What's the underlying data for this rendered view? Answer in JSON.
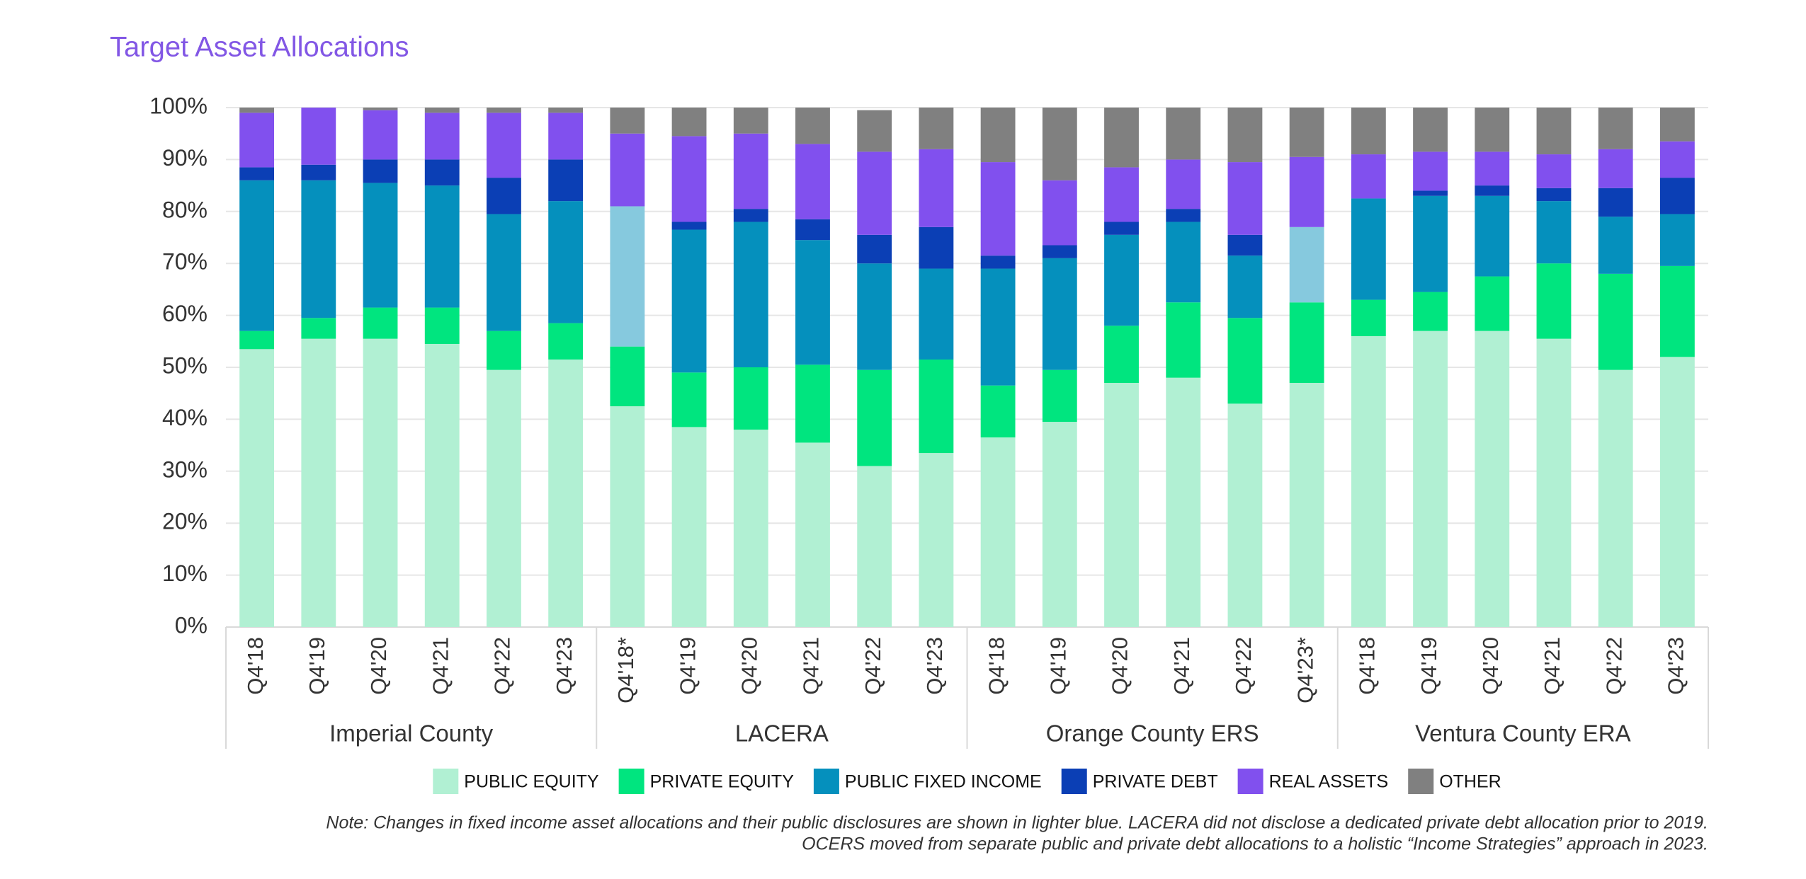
{
  "chart_data": {
    "type": "stacked-bar",
    "title": "Target Asset Allocations",
    "groups": [
      {
        "name": "Imperial County",
        "categories": [
          "Q4'18",
          "Q4'19",
          "Q4'20",
          "Q4'21",
          "Q4'22",
          "Q4'23"
        ]
      },
      {
        "name": "LACERA",
        "categories": [
          "Q4'18*",
          "Q4'19",
          "Q4'20",
          "Q4'21",
          "Q4'22",
          "Q4'23"
        ]
      },
      {
        "name": "Orange County ERS",
        "categories": [
          "Q4'18",
          "Q4'19",
          "Q4'20",
          "Q4'21",
          "Q4'22",
          "Q4'23*"
        ]
      },
      {
        "name": "Ventura County ERA",
        "categories": [
          "Q4'18",
          "Q4'19",
          "Q4'20",
          "Q4'21",
          "Q4'22",
          "Q4'23"
        ]
      }
    ],
    "series": [
      {
        "name": "PUBLIC EQUITY",
        "color": "#b1f0d3",
        "values": [
          53.5,
          55.5,
          55.5,
          54.5,
          49.5,
          51.5,
          42.5,
          38.5,
          38,
          35.5,
          31,
          33.5,
          36.5,
          39.5,
          47,
          48,
          43,
          47,
          56,
          57,
          57,
          55.5,
          49.5,
          52
        ]
      },
      {
        "name": "PRIVATE EQUITY",
        "color": "#00e57f",
        "values": [
          3.5,
          4,
          6,
          7,
          7.5,
          7,
          11.5,
          10.5,
          12,
          15,
          18.5,
          18,
          10,
          10,
          11,
          14.5,
          16.5,
          15.5,
          7,
          7.5,
          10.5,
          14.5,
          18.5,
          17.5
        ]
      },
      {
        "name": "PUBLIC FIXED INCOME",
        "color": "#0590bd",
        "colors": [
          "#0590bd",
          "#0590bd",
          "#0590bd",
          "#0590bd",
          "#0590bd",
          "#0590bd",
          "#86c9de",
          "#0590bd",
          "#0590bd",
          "#0590bd",
          "#0590bd",
          "#0590bd",
          "#0590bd",
          "#0590bd",
          "#0590bd",
          "#0590bd",
          "#0590bd",
          "#86c9de",
          "#0590bd",
          "#0590bd",
          "#0590bd",
          "#0590bd",
          "#0590bd",
          "#0590bd"
        ],
        "values": [
          29,
          26.5,
          24,
          23.5,
          22.5,
          23.5,
          27,
          27.5,
          28,
          24,
          20.5,
          17.5,
          22.5,
          21.5,
          17.5,
          15.5,
          12,
          14.5,
          19.5,
          18.5,
          15.5,
          12,
          11,
          10
        ]
      },
      {
        "name": "PRIVATE DEBT",
        "color": "#0b3fb5",
        "values": [
          2.5,
          3,
          4.5,
          5,
          7,
          8,
          0,
          1.5,
          2.5,
          4,
          5.5,
          8,
          2.5,
          2.5,
          2.5,
          2.5,
          4,
          0,
          0,
          1,
          2,
          2.5,
          5.5,
          7
        ]
      },
      {
        "name": "REAL ASSETS",
        "color": "#8150ee",
        "values": [
          10.5,
          11,
          9.5,
          9,
          12.5,
          9,
          14,
          16.5,
          14.5,
          14.5,
          16,
          15,
          18,
          12.5,
          10.5,
          9.5,
          14,
          13.5,
          8.5,
          7.5,
          6.5,
          6.5,
          7.5,
          7
        ]
      },
      {
        "name": "OTHER",
        "color": "#808080",
        "values": [
          1,
          0,
          0.5,
          1,
          1,
          1,
          5,
          5.5,
          5,
          7,
          8,
          8,
          10.5,
          14,
          11.5,
          10,
          10.5,
          9.5,
          9,
          8.5,
          8.5,
          9,
          8,
          6.5
        ]
      }
    ],
    "ylim": [
      0,
      100
    ],
    "yticks": [
      {
        "value": 0,
        "label": "0%"
      },
      {
        "value": 10,
        "label": "10%"
      },
      {
        "value": 20,
        "label": "20%"
      },
      {
        "value": 30,
        "label": "30%"
      },
      {
        "value": 40,
        "label": "40%"
      },
      {
        "value": 50,
        "label": "50%"
      },
      {
        "value": 60,
        "label": "60%"
      },
      {
        "value": 70,
        "label": "70%"
      },
      {
        "value": 80,
        "label": "80%"
      },
      {
        "value": 90,
        "label": "90%"
      },
      {
        "value": 100,
        "label": "100%"
      }
    ],
    "grid": true,
    "legend": "bottom",
    "notes": [
      "Note: Changes in fixed income asset allocations and their public disclosures are shown in lighter blue. LACERA did not disclose a dedicated private debt allocation prior to 2019.",
      "OCERS moved from separate public and private debt allocations to a holistic “Income Strategies” approach in 2023."
    ]
  }
}
